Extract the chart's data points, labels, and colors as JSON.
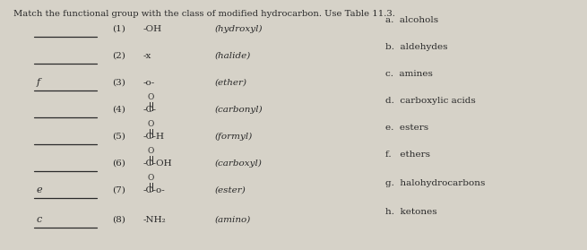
{
  "title": "Match the functional group with the class of modified hydrocarbon. Use Table 11.3.",
  "background_color": "#d6d2c8",
  "text_color": "#2a2a2a",
  "fig_width": 6.55,
  "fig_height": 2.79,
  "dpi": 100,
  "items": [
    {
      "num": "(1)",
      "group_main": "-OH",
      "group_sup": "",
      "name": "(hydroxyl)",
      "answer": ""
    },
    {
      "num": "(2)",
      "group_main": "-x",
      "group_sup": "",
      "name": "(halide)",
      "answer": ""
    },
    {
      "num": "(3)",
      "group_main": "-o-",
      "group_sup": "",
      "name": "(ether)",
      "answer": "f"
    },
    {
      "num": "(4)",
      "group_main": "-C-",
      "group_sup": "O",
      "name": "(carbonyl)",
      "answer": ""
    },
    {
      "num": "(5)",
      "group_main": "-C-H",
      "group_sup": "O",
      "name": "(formyl)",
      "answer": ""
    },
    {
      "num": "(6)",
      "group_main": "-C-OH",
      "group_sup": "O",
      "name": "(carboxyl)",
      "answer": ""
    },
    {
      "num": "(7)",
      "group_main": "-C-o-",
      "group_sup": "O",
      "name": "(ester)",
      "answer": "e"
    },
    {
      "num": "(8)",
      "group_main": "-NH₂",
      "group_sup": "",
      "name": "(amino)",
      "answer": "c"
    }
  ],
  "right_items": [
    "a.  alcohols",
    "b.  aldehydes",
    "c.  amines",
    "d.  carboxylic acids",
    "e.  esters",
    "f.   ethers",
    "g.  halohydrocarbons",
    "h.  ketones"
  ]
}
